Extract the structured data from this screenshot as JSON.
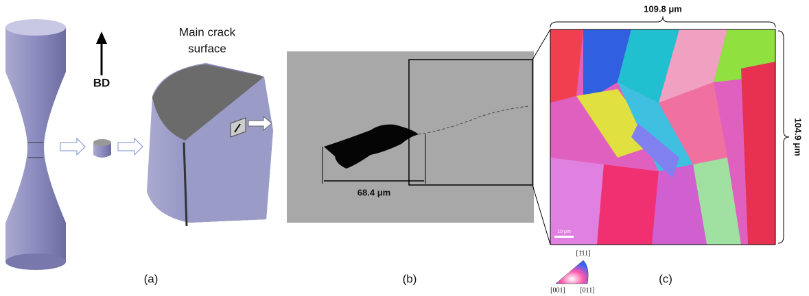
{
  "panel_a": {
    "direction_label": "BD",
    "crack_label": [
      "Main crack",
      "surface"
    ],
    "caption": "(a)"
  },
  "panel_b": {
    "measurement": "68.4 μm",
    "caption": "(b)"
  },
  "panel_c": {
    "width_label": "109.8 μm",
    "height_label": "104.9 μm",
    "scale_bar": "10 μm",
    "ipf_legend": {
      "top": "[1̄11]",
      "left": "[001]",
      "right": "[011]"
    },
    "caption": "(c)"
  }
}
